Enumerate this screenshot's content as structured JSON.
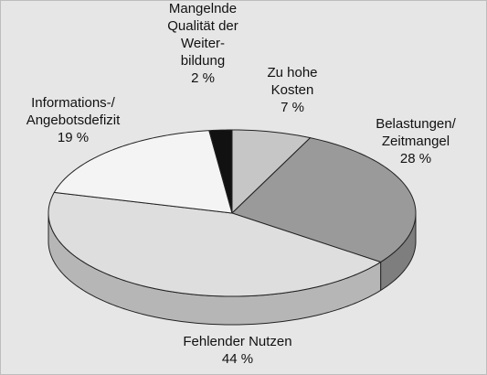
{
  "chart_data": {
    "type": "pie",
    "style": "3d",
    "categories": [
      "Zu hohe\nKosten",
      "Belastungen/\nZeitmangel",
      "Fehlender Nutzen",
      "Informations-/\nAngebotsdefizit",
      "Mangelnde\nQualität der\nWeiter-\nbildung"
    ],
    "values": [
      7,
      28,
      44,
      19,
      2
    ],
    "value_labels": [
      "7 %",
      "28 %",
      "44 %",
      "19 %",
      "2 %"
    ],
    "colors": [
      "#c6c6c6",
      "#9a9a9a",
      "#dedede",
      "#f4f4f4",
      "#111111"
    ]
  }
}
